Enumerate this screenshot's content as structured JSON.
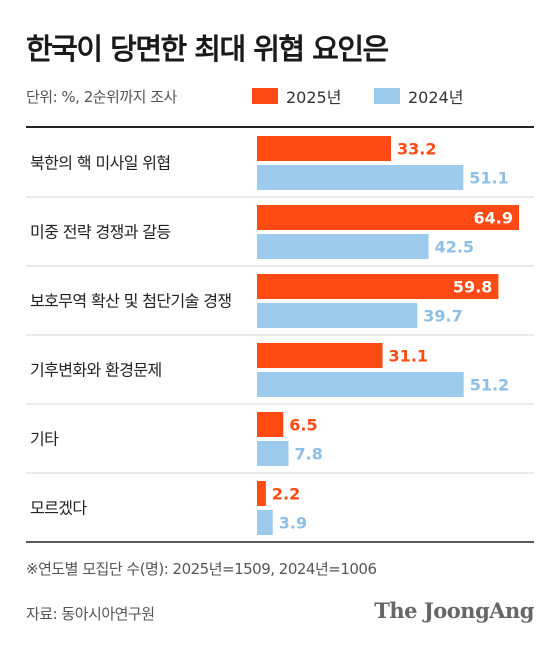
{
  "title": "한국이 당면한 최대 위협 요인은",
  "unit_note": "단위: %, 2순위까지 조사",
  "colors": {
    "series_2025": "#ff4a14",
    "series_2024": "#9ccbee",
    "divider": "#d6d6d6",
    "label_2025": "#ff4a14",
    "label_2024": "#8dbfe6"
  },
  "chart_data": {
    "type": "bar",
    "orientation": "horizontal",
    "categories": [
      "북한의 핵 미사일 위협",
      "미중 전략 경쟁과 갈등",
      "보호무역 확산 및 첨단기술 경쟁",
      "기후변화와 환경문제",
      "기타",
      "모르겠다"
    ],
    "series": [
      {
        "name": "2025년",
        "values": [
          33.2,
          64.9,
          59.8,
          31.1,
          6.5,
          2.2
        ],
        "labels": [
          "33.2",
          "64.9",
          "59.8",
          "31.1",
          "6.5",
          "2.2"
        ]
      },
      {
        "name": "2024년",
        "values": [
          51.1,
          42.5,
          39.7,
          51.2,
          7.8,
          3.9
        ],
        "labels": [
          "51.1",
          "42.5",
          "39.7",
          "51.2",
          "7.8",
          "3.9"
        ]
      }
    ],
    "xlim": [
      0,
      64.9
    ],
    "grid": false,
    "legend": "top-right"
  },
  "footnote": "※연도별 모집단 수(명): 2025년=1509, 2024년=1006",
  "source": "자료: 동아시아연구원",
  "logo": "The JoongAng"
}
